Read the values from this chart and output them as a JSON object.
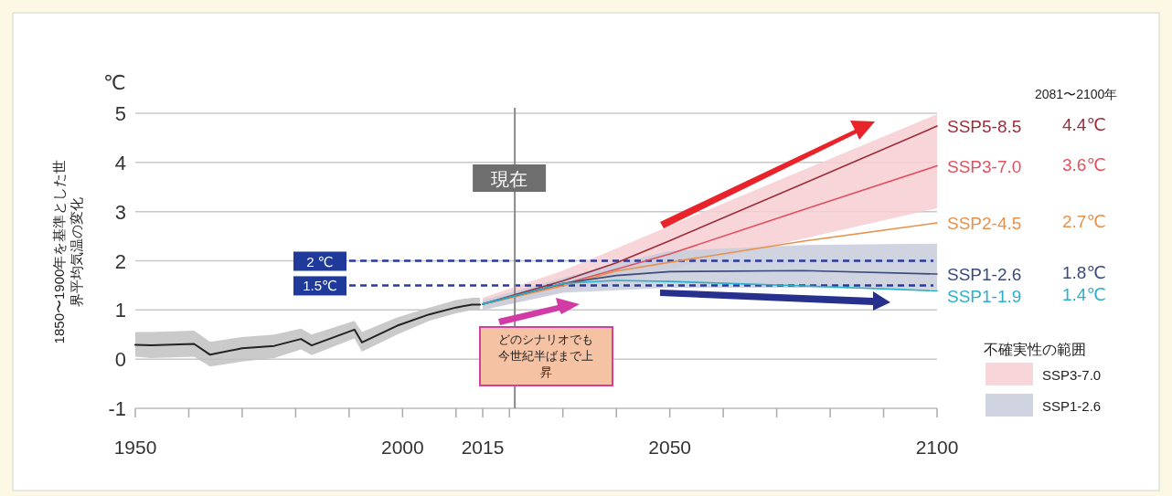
{
  "chart_data": {
    "type": "line",
    "ylabel": "1850〜1900年を基準とした世界平均気温の変化",
    "xlim": [
      1950,
      2100
    ],
    "ylim": [
      -1,
      5
    ],
    "xticks": [
      1950,
      {
        "value": 1960,
        "label": null
      },
      {
        "value": 1970,
        "label": null
      },
      {
        "value": 1980,
        "label": null
      },
      {
        "value": 1990,
        "label": null
      },
      2000,
      {
        "value": 2010,
        "label": null
      },
      2015,
      {
        "value": 2020,
        "label": null
      },
      {
        "value": 2030,
        "label": null
      },
      {
        "value": 2040,
        "label": null
      },
      2050,
      {
        "value": 2060,
        "label": null
      },
      {
        "value": 2070,
        "label": null
      },
      {
        "value": 2080,
        "label": null
      },
      {
        "value": 2090,
        "label": null
      },
      2100
    ],
    "yticks": [
      -1,
      0,
      1,
      2,
      3,
      4,
      5
    ],
    "grid": "y",
    "legend": "right",
    "legend_title": "不確実性の範囲",
    "line_style": "solid",
    "marker": "none",
    "series": [
      {
        "color": "#222222",
        "x": [
          1950,
          1953,
          1961,
          1964,
          1970,
          1976,
          1981,
          1983,
          1991,
          1992.4,
          1999,
          2005,
          2010,
          2013,
          2014.5
        ],
        "values": [
          0.29,
          0.28,
          0.31,
          0.09,
          0.22,
          0.27,
          0.41,
          0.28,
          0.6,
          0.34,
          0.68,
          0.91,
          1.05,
          1.11,
          1.11
        ],
        "lower": [
          0.05,
          0.02,
          0.05,
          -0.15,
          -0.05,
          0.02,
          0.2,
          0.08,
          0.42,
          0.15,
          0.5,
          0.78,
          0.93,
          1.0,
          1.0
        ],
        "upper": [
          0.55,
          0.55,
          0.58,
          0.35,
          0.45,
          0.5,
          0.62,
          0.5,
          0.78,
          0.55,
          0.85,
          1.05,
          1.2,
          1.25,
          1.25
        ]
      },
      {
        "name": "SSP5-8.5",
        "color": "#9b2d3a",
        "x": [
          2015,
          2030,
          2040,
          2050,
          2075,
          2100
        ],
        "values": [
          1.12,
          1.59,
          1.96,
          2.41,
          3.57,
          4.74
        ]
      },
      {
        "name": "SSP3-7.0",
        "color": "#e0505f",
        "x": [
          2015,
          2030,
          2040,
          2050,
          2075,
          2100
        ],
        "values": [
          1.12,
          1.52,
          1.83,
          2.14,
          3.04,
          3.93
        ],
        "lower": [
          1.0,
          1.36,
          1.6,
          1.83,
          2.45,
          3.07
        ],
        "upper": [
          1.25,
          1.8,
          2.25,
          2.71,
          3.85,
          4.98
        ]
      },
      {
        "name": "SSP2-4.5",
        "color": "#e8914a",
        "x": [
          2015,
          2030,
          2040,
          2050,
          2075,
          2100
        ],
        "values": [
          1.12,
          1.49,
          1.79,
          1.97,
          2.4,
          2.77
        ]
      },
      {
        "name": "SSP1-2.6",
        "color": "#3a4a7a",
        "x": [
          2015,
          2030,
          2040,
          2050,
          2075,
          2100
        ],
        "values": [
          1.12,
          1.54,
          1.7,
          1.78,
          1.8,
          1.73
        ],
        "lower": [
          1.0,
          1.35,
          1.4,
          1.45,
          1.45,
          1.42
        ],
        "upper": [
          1.2,
          1.65,
          1.95,
          2.2,
          2.32,
          2.35
        ]
      },
      {
        "name": "SSP1-1.9",
        "color": "#2ab0c8",
        "x": [
          2015,
          2030,
          2040,
          2050,
          2075,
          2100
        ],
        "values": [
          1.12,
          1.54,
          1.6,
          1.58,
          1.49,
          1.39
        ]
      }
    ],
    "ref_lines": [
      {
        "axis": "y",
        "value": 2,
        "label": "2 ℃",
        "color": "#2a3a9a",
        "line_style": "dashed"
      },
      {
        "axis": "y",
        "value": 1.5,
        "label": "1.5℃",
        "color": "#2a3a9a",
        "line_style": "dashed"
      },
      {
        "axis": "x",
        "value": 2021,
        "label": "現在",
        "color": "#8a8a8a",
        "line_style": "solid"
      }
    ],
    "annotations": [
      "℃",
      "2081〜2100年",
      "4.4℃",
      "3.6℃",
      "2.7℃",
      "1.8℃",
      "1.4℃",
      "どのシナリオでも今世紀半ばまで上昇"
    ]
  }
}
